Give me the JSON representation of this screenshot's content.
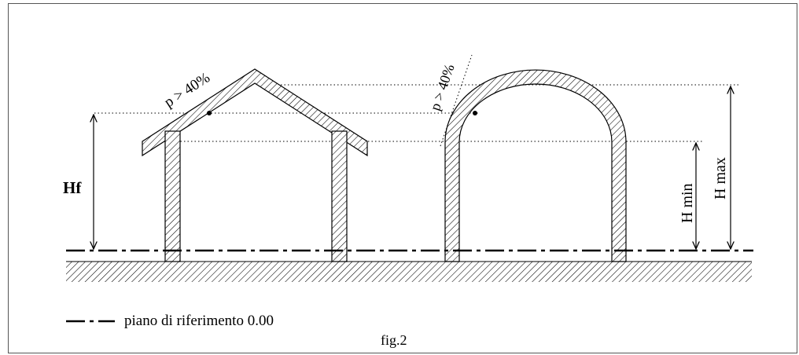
{
  "labels": {
    "hf": "Hf",
    "slope_house": "p > 40%",
    "slope_arch": "p > 40%",
    "h_min": "H min",
    "h_max": "H max"
  },
  "legend": {
    "reference_plane": "piano di riferimento 0.00"
  },
  "caption": "fig.2"
}
